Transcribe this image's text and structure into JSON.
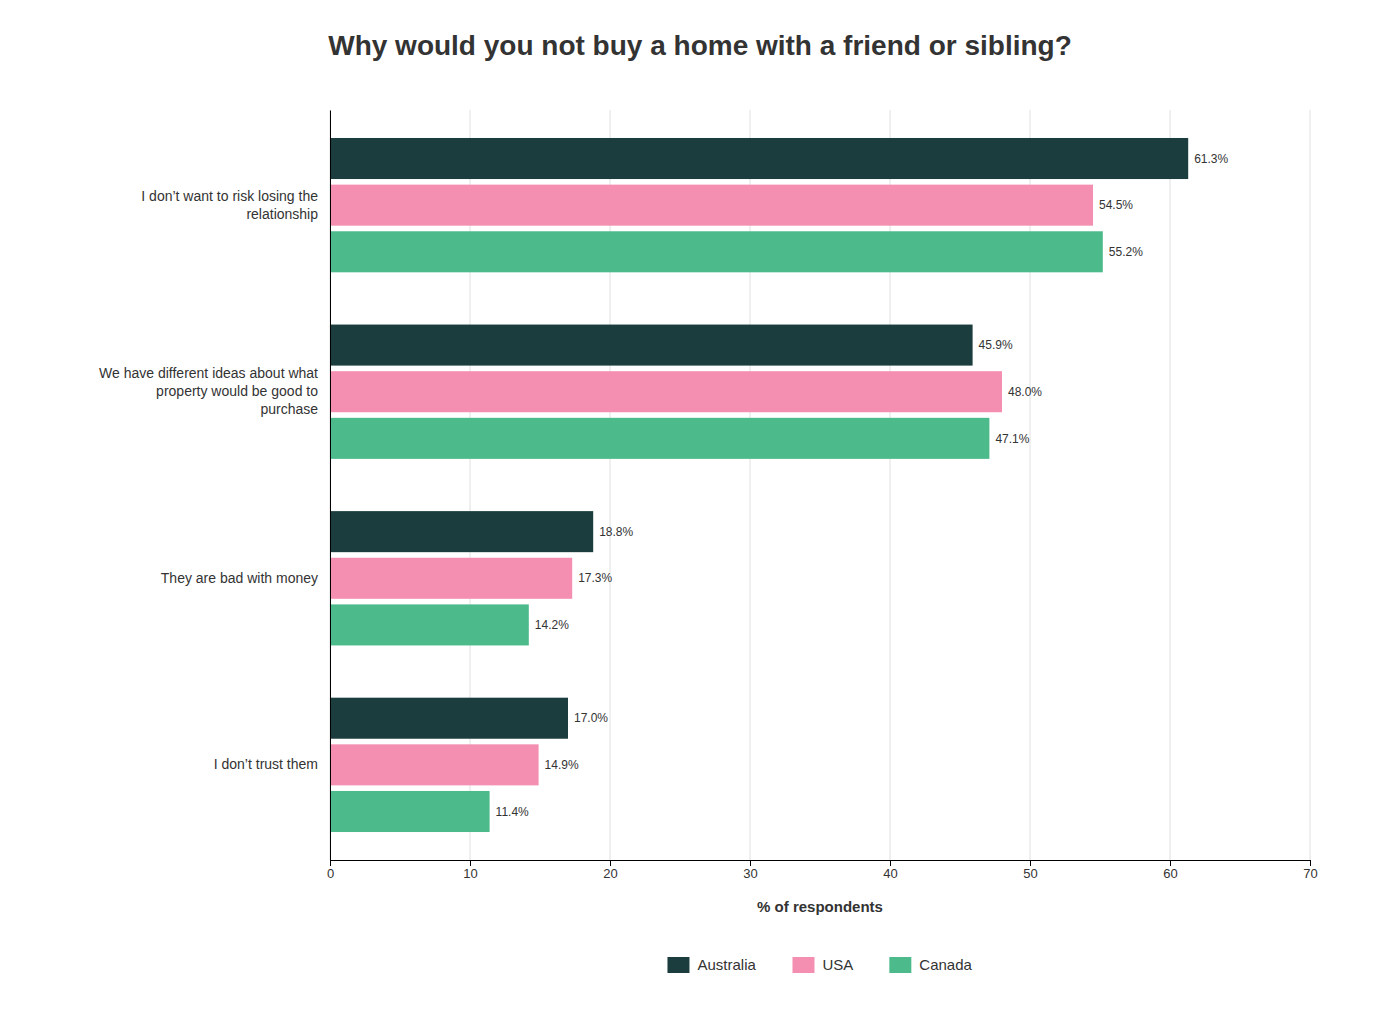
{
  "chart_data": {
    "type": "bar",
    "orientation": "horizontal",
    "title": "Why would you not buy a home with a friend or sibling?",
    "xlabel": "% of respondents",
    "categories": [
      "I don’t want to risk losing the\nrelationship",
      "We have different ideas about what\nproperty would be good to\npurchase",
      "They are bad with money",
      "I don’t trust them"
    ],
    "series": [
      {
        "name": "Australia",
        "color": "#1c3d3d",
        "values": [
          61.3,
          45.9,
          18.8,
          17.0
        ],
        "value_labels": [
          "61.3%",
          "45.9%",
          "18.8%",
          "17.0%"
        ]
      },
      {
        "name": "USA",
        "color": "#f48fb1",
        "values": [
          54.5,
          48.0,
          17.3,
          14.9
        ],
        "value_labels": [
          "54.5%",
          "48.0%",
          "17.3%",
          "14.9%"
        ]
      },
      {
        "name": "Canada",
        "color": "#4dba8c",
        "values": [
          55.2,
          47.1,
          14.2,
          11.4
        ],
        "value_labels": [
          "55.2%",
          "47.1%",
          "14.2%",
          "11.4%"
        ]
      }
    ],
    "xlim": [
      0,
      70
    ],
    "xticks": [
      0,
      10,
      20,
      30,
      40,
      50,
      60,
      70
    ],
    "grid": true,
    "data_labels": true,
    "legend": "bottom"
  }
}
